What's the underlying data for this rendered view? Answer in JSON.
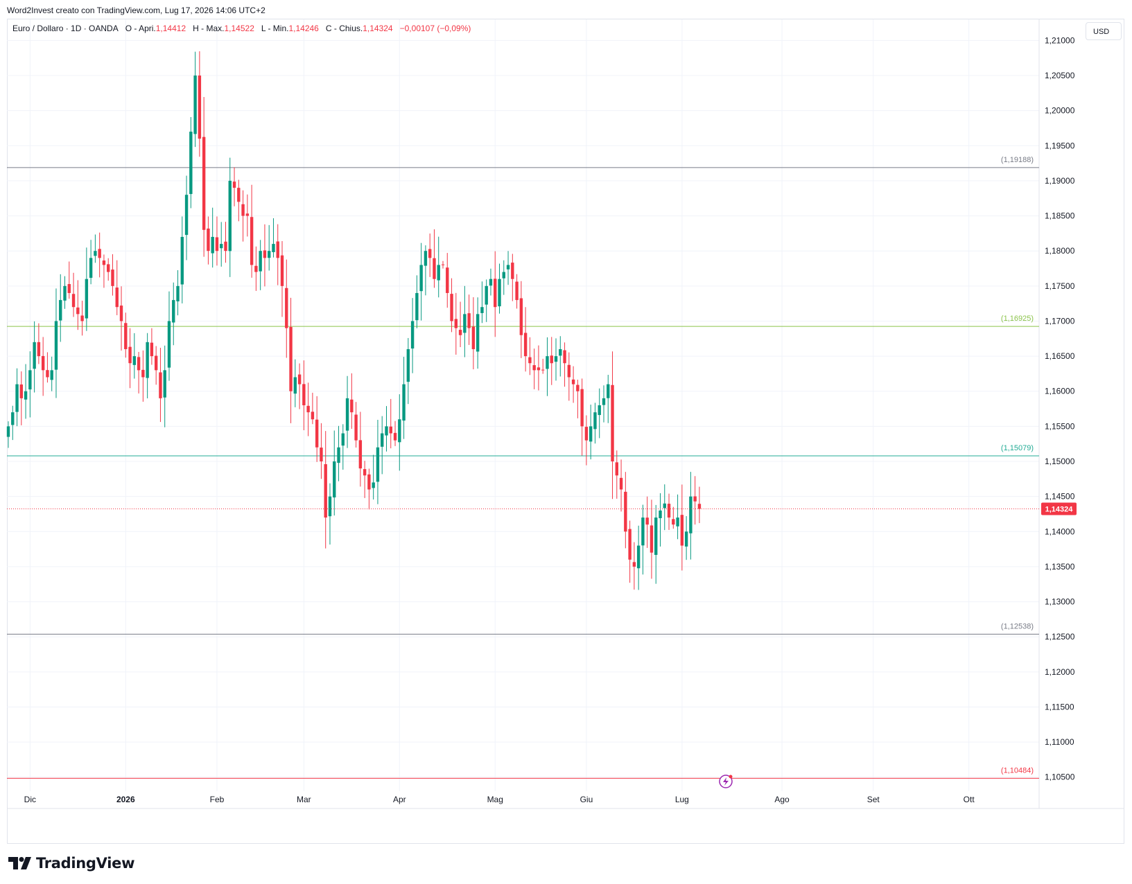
{
  "header": {
    "attribution": "Word2Invest creato con TradingView.com, Lug 17, 2026 14:06 UTC+2"
  },
  "legend": {
    "symbol": "Euro / Dollaro · 1D · OANDA",
    "open_label": "O - Apri.",
    "open": "1,14412",
    "high_label": "H - Max.",
    "high": "1,14522",
    "low_label": "L - Min.",
    "low": "1,14246",
    "close_label": "C - Chius.",
    "close": "1,14324",
    "change": "−0,00107 (−0,09%)"
  },
  "currency_button": "USD",
  "footer": {
    "logo_text": "TradingView"
  },
  "colors": {
    "up": "#089981",
    "down": "#f23645",
    "grid": "#f0f3fa",
    "axis_text": "#131722",
    "level_gray": "#787b86",
    "level_green": "#8bc34a",
    "level_teal": "#22ab94",
    "level_red": "#f23645"
  },
  "chart_data": {
    "type": "candlestick",
    "symbol": "EURUSD",
    "timeframe": "1D",
    "ylim": [
      1.103,
      1.213
    ],
    "y_ticks": [
      {
        "value": 1.21,
        "label": "1,21000"
      },
      {
        "value": 1.205,
        "label": "1,20500"
      },
      {
        "value": 1.2,
        "label": "1,20000"
      },
      {
        "value": 1.195,
        "label": "1,19500"
      },
      {
        "value": 1.19,
        "label": "1,19000"
      },
      {
        "value": 1.185,
        "label": "1,18500"
      },
      {
        "value": 1.18,
        "label": "1,18000"
      },
      {
        "value": 1.175,
        "label": "1,17500"
      },
      {
        "value": 1.17,
        "label": "1,17000"
      },
      {
        "value": 1.165,
        "label": "1,16500"
      },
      {
        "value": 1.16,
        "label": "1,16000"
      },
      {
        "value": 1.155,
        "label": "1,15500"
      },
      {
        "value": 1.15,
        "label": "1,15000"
      },
      {
        "value": 1.145,
        "label": "1,14500"
      },
      {
        "value": 1.14,
        "label": "1,14000"
      },
      {
        "value": 1.135,
        "label": "1,13500"
      },
      {
        "value": 1.13,
        "label": "1,13000"
      },
      {
        "value": 1.125,
        "label": "1,12500"
      },
      {
        "value": 1.12,
        "label": "1,12000"
      },
      {
        "value": 1.115,
        "label": "1,11500"
      },
      {
        "value": 1.11,
        "label": "1,11000"
      },
      {
        "value": 1.105,
        "label": "1,10500"
      }
    ],
    "x_ticks": [
      {
        "index": 5,
        "label": "Dic"
      },
      {
        "index": 27,
        "label": "2026"
      },
      {
        "index": 48,
        "label": "Feb"
      },
      {
        "index": 68,
        "label": "Mar"
      },
      {
        "index": 90,
        "label": "Apr"
      },
      {
        "index": 112,
        "label": "Mag"
      },
      {
        "index": 133,
        "label": "Giu"
      },
      {
        "index": 155,
        "label": "Lug"
      },
      {
        "index": 178,
        "label": "Ago"
      },
      {
        "index": 199,
        "label": "Set"
      },
      {
        "index": 221,
        "label": "Ott"
      }
    ],
    "horizontal_levels": [
      {
        "value": 1.19188,
        "label": "(1,19188)",
        "color": "#787b86"
      },
      {
        "value": 1.16925,
        "label": "(1,16925)",
        "color": "#8bc34a"
      },
      {
        "value": 1.15079,
        "label": "(1,15079)",
        "color": "#22ab94"
      },
      {
        "value": 1.12538,
        "label": "(1,12538)",
        "color": "#787b86"
      },
      {
        "value": 1.10484,
        "label": "(1,10484)",
        "color": "#f23645"
      }
    ],
    "current_price": {
      "value": 1.14324,
      "label": "1,14324"
    },
    "closes": [
      1.155,
      1.157,
      1.161,
      1.159,
      1.16,
      1.163,
      1.167,
      1.165,
      1.163,
      1.162,
      1.163,
      1.17,
      1.173,
      1.175,
      1.174,
      1.172,
      1.171,
      1.17,
      1.176,
      1.179,
      1.18,
      1.179,
      1.178,
      1.177,
      1.175,
      1.172,
      1.17,
      1.166,
      1.164,
      1.165,
      1.163,
      1.162,
      1.167,
      1.165,
      1.163,
      1.159,
      1.163,
      1.17,
      1.173,
      1.175,
      1.182,
      1.188,
      1.197,
      1.205,
      1.196,
      1.183,
      1.18,
      1.182,
      1.18,
      1.181,
      1.18,
      1.19,
      1.189,
      1.187,
      1.185,
      1.185,
      1.178,
      1.177,
      1.18,
      1.179,
      1.18,
      1.181,
      1.179,
      1.175,
      1.169,
      1.16,
      1.162,
      1.161,
      1.158,
      1.157,
      1.156,
      1.152,
      1.15,
      1.142,
      1.145,
      1.15,
      1.152,
      1.154,
      1.159,
      1.157,
      1.153,
      1.149,
      1.148,
      1.146,
      1.147,
      1.152,
      1.154,
      1.155,
      1.154,
      1.153,
      1.156,
      1.161,
      1.166,
      1.17,
      1.174,
      1.178,
      1.18,
      1.179,
      1.176,
      1.178,
      1.178,
      1.174,
      1.17,
      1.169,
      1.168,
      1.171,
      1.169,
      1.166,
      1.171,
      1.172,
      1.175,
      1.176,
      1.172,
      1.176,
      1.177,
      1.178,
      1.176,
      1.173,
      1.168,
      1.165,
      1.164,
      1.163,
      1.163,
      1.163,
      1.165,
      1.164,
      1.165,
      1.166,
      1.164,
      1.162,
      1.161,
      1.16,
      1.155,
      1.153,
      1.155,
      1.157,
      1.158,
      1.159,
      1.161,
      1.15,
      1.148,
      1.146,
      1.14,
      1.136,
      1.135,
      1.138,
      1.142,
      1.141,
      1.137,
      1.142,
      1.143,
      1.144,
      1.142,
      1.141,
      1.142,
      1.138,
      1.14,
      1.145,
      1.1443,
      1.14324
    ]
  }
}
